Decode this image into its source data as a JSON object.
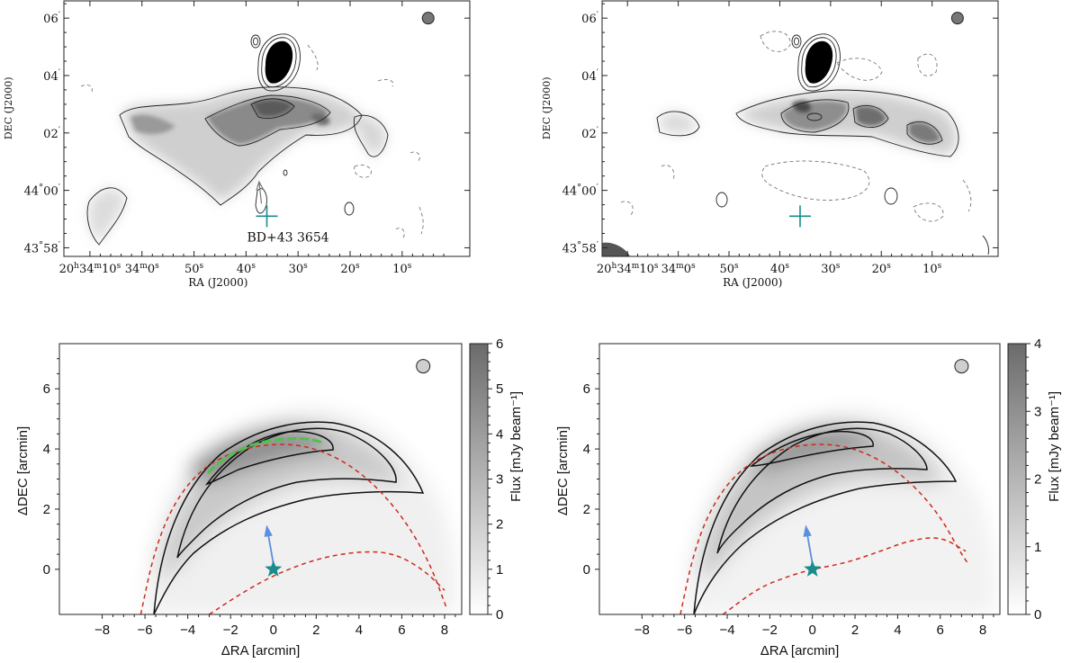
{
  "chart_data": [
    {
      "type": "heatmap",
      "panel": "top-left",
      "xlabel": "RA (J2000)",
      "ylabel": "DEC (J2000)",
      "x_ticks": [
        {
          "h": "20",
          "hs": "h",
          "m": "34",
          "ms": "m",
          "s": "10",
          "ss": "s",
          "x_sec": 70
        },
        {
          "m": "34",
          "ms": "m",
          "s": "0",
          "ss": "s",
          "x_sec": 60
        },
        {
          "s": "50",
          "ss": "s",
          "x_sec": 50
        },
        {
          "s": "40",
          "ss": "s",
          "x_sec": 40
        },
        {
          "s": "30",
          "ss": "s",
          "x_sec": 30
        },
        {
          "s": "20",
          "ss": "s",
          "x_sec": 20
        },
        {
          "s": "10",
          "ss": "s",
          "x_sec": 10
        }
      ],
      "y_ticks": [
        {
          "d": "",
          "ds": "",
          "m": "06",
          "ms": "′",
          "y_arcmin": 366
        },
        {
          "d": "",
          "ds": "",
          "m": "04",
          "ms": "′",
          "y_arcmin": 364
        },
        {
          "d": "",
          "ds": "",
          "m": "02",
          "ms": "′",
          "y_arcmin": 362
        },
        {
          "d": "44",
          "ds": "°",
          "m": "00",
          "ms": "′",
          "y_arcmin": 360
        },
        {
          "d": "43",
          "ds": "°",
          "m": "58",
          "ms": "′",
          "y_arcmin": 358
        }
      ],
      "xlim": [
        75,
        -3
      ],
      "ylim": [
        357.7,
        366.6
      ],
      "annotation": "BD+43 3654",
      "star_marker": {
        "x_sec": 36,
        "y_arcmin": 359.1
      },
      "arrow_tip": {
        "x_sec": 37.5,
        "y_arcmin": 360.3
      },
      "beam": {
        "x_sec": 5,
        "y_arcmin": 366
      }
    },
    {
      "type": "heatmap",
      "panel": "top-right",
      "xlabel": "RA (J2000)",
      "ylabel": "DEC (J2000)",
      "x_ticks": [
        {
          "h": "20",
          "hs": "h",
          "m": "34",
          "ms": "m",
          "s": "10",
          "ss": "s",
          "x_sec": 70
        },
        {
          "m": "34",
          "ms": "m",
          "s": "0",
          "ss": "s",
          "x_sec": 60
        },
        {
          "s": "50",
          "ss": "s",
          "x_sec": 50
        },
        {
          "s": "40",
          "ss": "s",
          "x_sec": 40
        },
        {
          "s": "30",
          "ss": "s",
          "x_sec": 30
        },
        {
          "s": "20",
          "ss": "s",
          "x_sec": 20
        },
        {
          "s": "10",
          "ss": "s",
          "x_sec": 10
        }
      ],
      "y_ticks": [
        {
          "d": "",
          "ds": "",
          "m": "06",
          "ms": "′",
          "y_arcmin": 366
        },
        {
          "d": "",
          "ds": "",
          "m": "04",
          "ms": "′",
          "y_arcmin": 364
        },
        {
          "d": "",
          "ds": "",
          "m": "02",
          "ms": "′",
          "y_arcmin": 362
        },
        {
          "d": "44",
          "ds": "°",
          "m": "00",
          "ms": "′",
          "y_arcmin": 360
        },
        {
          "d": "43",
          "ds": "°",
          "m": "58",
          "ms": "′",
          "y_arcmin": 358
        }
      ],
      "xlim": [
        75,
        -3
      ],
      "ylim": [
        357.7,
        366.6
      ],
      "star_marker": {
        "x_sec": 36,
        "y_arcmin": 359.1
      },
      "beam": {
        "x_sec": 5,
        "y_arcmin": 366
      }
    },
    {
      "type": "heatmap",
      "panel": "bottom-left",
      "xlabel": "ΔRA [arcmin]",
      "ylabel": "ΔDEC [arcmin]",
      "colorbar_label": "Flux [mJy beam⁻¹]",
      "xlim": [
        -10,
        8.8
      ],
      "ylim": [
        -1.5,
        7.5
      ],
      "x_ticks": [
        -8,
        -6,
        -4,
        -2,
        0,
        2,
        4,
        6,
        8
      ],
      "y_ticks": [
        0,
        2,
        4,
        6
      ],
      "colorbar_ticks": [
        0,
        1,
        2,
        3,
        4,
        5,
        6
      ],
      "colorbar_range": [
        0,
        6
      ],
      "star": {
        "x": 0,
        "y": 0
      },
      "arrow": {
        "from": [
          0,
          0
        ],
        "to": [
          -0.3,
          1.4
        ]
      },
      "beam": {
        "x": 7,
        "y": 6.75
      },
      "outer_bow_dashed": [
        [
          -6.2,
          -1.5
        ],
        [
          -5.6,
          0.5
        ],
        [
          -4.8,
          2
        ],
        [
          -3.6,
          3.2
        ],
        [
          -2,
          3.9
        ],
        [
          0,
          4.2
        ],
        [
          2,
          4.05
        ],
        [
          4,
          3.3
        ],
        [
          5.8,
          2
        ],
        [
          7.2,
          0.4
        ],
        [
          8.1,
          -1.3
        ]
      ],
      "inner_dashed": [
        [
          -3,
          -1.5
        ],
        [
          -1.5,
          -0.8
        ],
        [
          0,
          -0.2
        ],
        [
          2,
          0.35
        ],
        [
          4,
          0.6
        ],
        [
          5.6,
          0.55
        ],
        [
          7,
          0
        ],
        [
          8,
          -0.7
        ]
      ]
    },
    {
      "type": "heatmap",
      "panel": "bottom-right",
      "xlabel": "ΔRA [arcmin]",
      "ylabel": "ΔDEC [arcmin]",
      "colorbar_label": "Flux [mJy beam⁻¹]",
      "xlim": [
        -10,
        8.8
      ],
      "ylim": [
        -1.5,
        7.5
      ],
      "x_ticks": [
        -8,
        -6,
        -4,
        -2,
        0,
        2,
        4,
        6,
        8
      ],
      "y_ticks": [
        0,
        2,
        4,
        6
      ],
      "colorbar_ticks": [
        0,
        1,
        2,
        3,
        4
      ],
      "colorbar_range": [
        0,
        4
      ],
      "star": {
        "x": 0,
        "y": 0
      },
      "arrow": {
        "from": [
          0,
          0
        ],
        "to": [
          -0.3,
          1.4
        ]
      },
      "beam": {
        "x": 7,
        "y": 6.75
      },
      "outer_bow_dashed": [
        [
          -6.2,
          -1.5
        ],
        [
          -5.6,
          0.5
        ],
        [
          -4.8,
          2
        ],
        [
          -3.6,
          3.2
        ],
        [
          -2,
          3.9
        ],
        [
          0,
          4.2
        ],
        [
          2,
          4.05
        ],
        [
          4,
          3.3
        ],
        [
          5.8,
          2
        ],
        [
          7,
          0.5
        ],
        [
          7.3,
          0.2
        ]
      ],
      "inner_dashed": [
        [
          -4.2,
          -1.5
        ],
        [
          -2.5,
          -0.6
        ],
        [
          -1,
          -0.2
        ],
        [
          0,
          0
        ],
        [
          1.5,
          0.2
        ],
        [
          3,
          0.55
        ],
        [
          4.5,
          0.95
        ],
        [
          6,
          1.1
        ],
        [
          7.2,
          0.6
        ]
      ]
    }
  ],
  "colors": {
    "star": "#1a8c8c",
    "cross": "#1a8c8c",
    "arrow_blue": "#5b8fe0",
    "red_dashed": "#cc2a1e",
    "green_dashed": "#4fc14a"
  }
}
